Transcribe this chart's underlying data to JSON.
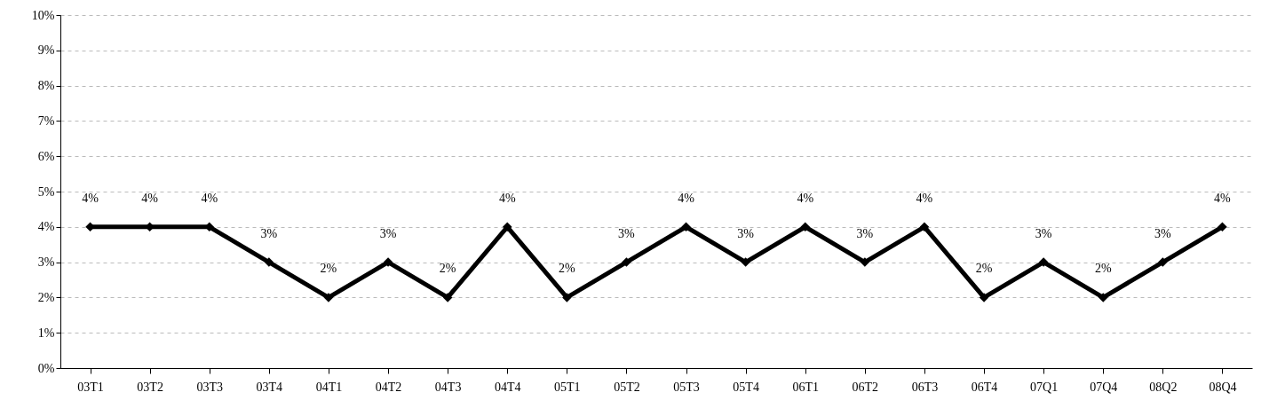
{
  "chart_data": {
    "type": "line",
    "categories": [
      "03T1",
      "03T2",
      "03T3",
      "03T4",
      "04T1",
      "04T2",
      "04T3",
      "04T4",
      "05T1",
      "05T2",
      "05T3",
      "05T4",
      "06T1",
      "06T2",
      "06T3",
      "06T4",
      "07Q1",
      "07Q4",
      "08Q2",
      "08Q4"
    ],
    "series": [
      {
        "color": "#000000",
        "values": [
          4,
          4,
          4,
          3,
          2,
          3,
          2,
          4,
          2,
          3,
          4,
          3,
          4,
          3,
          4,
          2,
          3,
          2,
          3,
          4
        ],
        "value_labels": [
          "4%",
          "4%",
          "4%",
          "3%",
          "2%",
          "3%",
          "2%",
          "4%",
          "2%",
          "3%",
          "4%",
          "3%",
          "4%",
          "3%",
          "4%",
          "2%",
          "3%",
          "2%",
          "3%",
          "4%"
        ]
      }
    ],
    "ylim": [
      0,
      10
    ],
    "yticks": [
      {
        "value": 0,
        "label": "0%"
      },
      {
        "value": 1,
        "label": "1%"
      },
      {
        "value": 2,
        "label": "2%"
      },
      {
        "value": 3,
        "label": "3%"
      },
      {
        "value": 4,
        "label": "4%"
      },
      {
        "value": 5,
        "label": "5%"
      },
      {
        "value": 6,
        "label": "6%"
      },
      {
        "value": 7,
        "label": "7%"
      },
      {
        "value": 8,
        "label": "8%"
      },
      {
        "value": 9,
        "label": "9%"
      },
      {
        "value": 10,
        "label": "10%"
      }
    ],
    "grid": "y",
    "marker": "diamond",
    "line_style": "solid"
  }
}
